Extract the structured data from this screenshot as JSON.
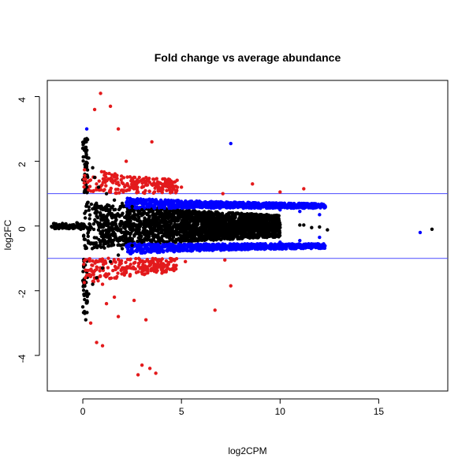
{
  "chart_data": {
    "type": "scatter",
    "title": "Fold change vs average abundance",
    "xlabel": "log2CPM",
    "ylabel": "log2FC",
    "xlim": [
      -1.8,
      18.5
    ],
    "ylim": [
      -5.1,
      4.5
    ],
    "x_ticks": [
      0,
      5,
      10,
      15
    ],
    "y_ticks": [
      -4,
      -2,
      0,
      2,
      4
    ],
    "x_tick_labels": [
      "0",
      "5",
      "10",
      "15"
    ],
    "y_tick_labels": [
      "-4",
      "-2",
      "0",
      "2",
      "4"
    ],
    "grid": false,
    "legend": "none",
    "reference_lines": [
      {
        "axis": "y",
        "value": 1,
        "color": "#4a4aff"
      },
      {
        "axis": "y",
        "value": -1,
        "color": "#4a4aff"
      }
    ],
    "colors": {
      "black": "#000000",
      "blue": "#0000ff",
      "red": "#e31a1c",
      "line_blue": "#4a4aff",
      "axis": "#000000",
      "background": "#ffffff"
    },
    "series": [
      {
        "color": "#000000",
        "points": [
          [
            -1.1,
            0.0
          ],
          [
            -0.9,
            0.05
          ],
          [
            -0.7,
            -0.05
          ],
          [
            -0.5,
            0.0
          ],
          [
            -0.3,
            0.1
          ],
          [
            -0.1,
            -0.1
          ],
          [
            0.0,
            2.4
          ],
          [
            0.1,
            2.6
          ],
          [
            0.2,
            2.7
          ],
          [
            0.0,
            -2.5
          ],
          [
            0.1,
            -2.7
          ],
          [
            0.15,
            -2.9
          ],
          [
            0.3,
            2.1
          ],
          [
            0.5,
            1.8
          ],
          [
            0.6,
            1.5
          ],
          [
            0.8,
            1.2
          ],
          [
            1.2,
            1.0
          ],
          [
            1.6,
            0.8
          ],
          [
            0.3,
            -2.1
          ],
          [
            0.5,
            -1.8
          ],
          [
            0.7,
            -1.6
          ],
          [
            1.0,
            -1.3
          ],
          [
            1.4,
            -1.1
          ],
          [
            1.8,
            -0.9
          ],
          [
            2.0,
            0.7
          ],
          [
            2.5,
            0.6
          ],
          [
            3.0,
            0.5
          ],
          [
            3.5,
            0.45
          ],
          [
            4.0,
            0.4
          ],
          [
            5.0,
            0.35
          ],
          [
            2.0,
            -0.7
          ],
          [
            2.5,
            -0.6
          ],
          [
            3.0,
            -0.5
          ],
          [
            3.5,
            -0.45
          ],
          [
            4.0,
            -0.4
          ],
          [
            5.0,
            -0.35
          ],
          [
            6.0,
            0.3
          ],
          [
            7.0,
            0.25
          ],
          [
            8.0,
            0.15
          ],
          [
            9.0,
            0.08
          ],
          [
            10.0,
            0.04
          ],
          [
            6.0,
            -0.3
          ],
          [
            7.0,
            -0.25
          ],
          [
            8.0,
            -0.15
          ],
          [
            9.0,
            -0.08
          ],
          [
            10.0,
            -0.05
          ],
          [
            11.0,
            0.03
          ],
          [
            11.2,
            0.03
          ],
          [
            11.6,
            -0.05
          ],
          [
            12.0,
            -0.03
          ],
          [
            12.4,
            -0.12
          ],
          [
            17.7,
            -0.1
          ]
        ]
      },
      {
        "color": "#0000ff",
        "points": [
          [
            0.2,
            3.0
          ],
          [
            7.5,
            2.55
          ],
          [
            17.1,
            -0.2
          ],
          [
            2.4,
            0.85
          ],
          [
            3.2,
            0.8
          ],
          [
            4.0,
            0.75
          ],
          [
            5.0,
            0.7
          ],
          [
            6.0,
            0.65
          ],
          [
            7.0,
            0.75
          ],
          [
            8.0,
            0.6
          ],
          [
            9.0,
            0.55
          ],
          [
            10.0,
            0.5
          ],
          [
            11.0,
            0.45
          ],
          [
            12.0,
            0.35
          ],
          [
            2.4,
            -0.85
          ],
          [
            3.2,
            -0.8
          ],
          [
            4.0,
            -0.75
          ],
          [
            5.0,
            -0.7
          ],
          [
            6.0,
            -0.65
          ],
          [
            7.0,
            -0.75
          ],
          [
            8.0,
            -0.6
          ],
          [
            9.0,
            -0.55
          ],
          [
            10.0,
            -0.5
          ],
          [
            11.0,
            -0.45
          ],
          [
            12.0,
            -0.35
          ]
        ]
      },
      {
        "color": "#e31a1c",
        "points": [
          [
            0.9,
            4.1
          ],
          [
            1.4,
            3.7
          ],
          [
            0.6,
            3.6
          ],
          [
            1.8,
            3.0
          ],
          [
            2.2,
            2.0
          ],
          [
            3.5,
            2.6
          ],
          [
            4.2,
            1.4
          ],
          [
            5.0,
            1.2
          ],
          [
            7.1,
            1.0
          ],
          [
            8.6,
            1.3
          ],
          [
            10.0,
            1.05
          ],
          [
            11.2,
            1.15
          ],
          [
            0.5,
            -1.5
          ],
          [
            1.0,
            -1.8
          ],
          [
            1.2,
            -2.4
          ],
          [
            1.6,
            -2.2
          ],
          [
            2.6,
            -2.3
          ],
          [
            3.2,
            -2.9
          ],
          [
            3.0,
            -4.3
          ],
          [
            2.8,
            -4.6
          ],
          [
            3.4,
            -4.4
          ],
          [
            3.7,
            -4.55
          ],
          [
            6.7,
            -2.6
          ],
          [
            0.4,
            -3.0
          ],
          [
            0.7,
            -3.6
          ],
          [
            1.0,
            -3.7
          ],
          [
            1.8,
            -2.8
          ],
          [
            2.4,
            -1.5
          ],
          [
            4.3,
            -1.3
          ],
          [
            5.2,
            -1.1
          ],
          [
            7.2,
            -1.05
          ],
          [
            7.5,
            -1.85
          ]
        ]
      }
    ],
    "noise_fill": {
      "black_core": {
        "x_start": 0.0,
        "x_end": 10.0,
        "spread": 0.75
      },
      "blue_band": {
        "x_start": 2.2,
        "x_end": 12.3,
        "outer": 1.0,
        "inner": 0.55
      },
      "red_band": {
        "x_start": 0.0,
        "x_end": 4.8,
        "outer": 1.8,
        "inner": 1.0
      }
    }
  }
}
